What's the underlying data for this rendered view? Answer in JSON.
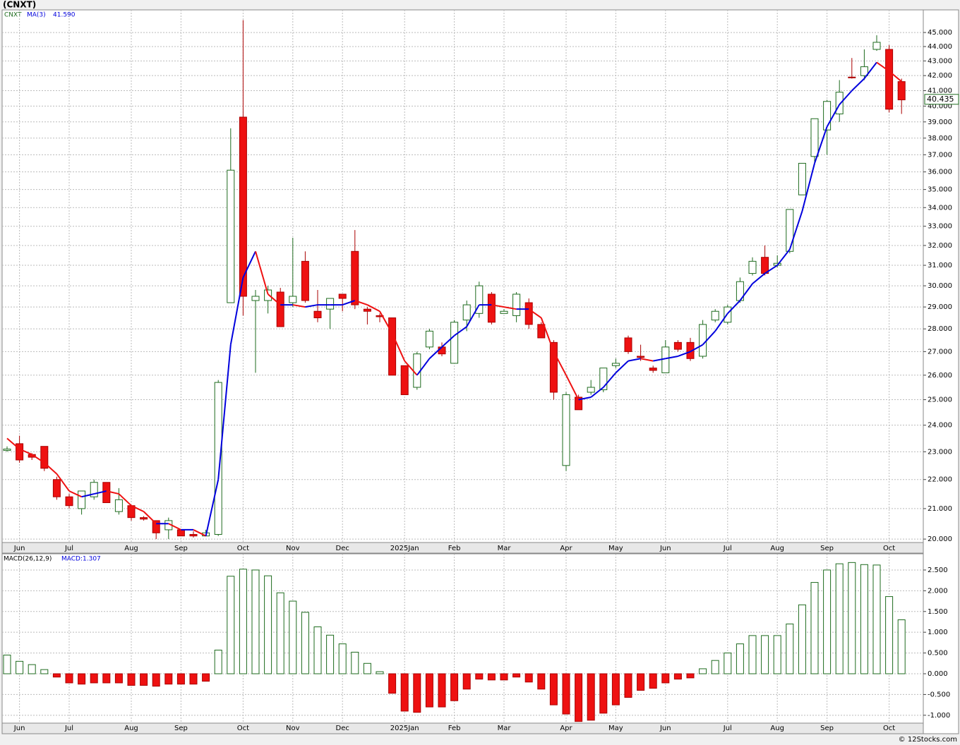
{
  "chart_data": [
    {
      "type": "candlestick",
      "title": "(CNXT)",
      "ticker": "CNXT",
      "log_scale": true,
      "grid": true,
      "up_color": "#ffffff",
      "up_stroke": "#1e6b1e",
      "down_color": "#ee1111",
      "down_stroke": "#aa0000",
      "categories": [
        null,
        "Jun",
        null,
        null,
        null,
        "Jul",
        null,
        null,
        null,
        null,
        "Aug",
        null,
        null,
        null,
        "Sep",
        null,
        null,
        null,
        null,
        "Oct",
        null,
        null,
        null,
        "Nov",
        null,
        null,
        null,
        "Dec",
        null,
        null,
        null,
        null,
        "2025Jan",
        null,
        null,
        null,
        "Feb",
        null,
        null,
        null,
        "Mar",
        null,
        null,
        null,
        null,
        "Apr",
        null,
        null,
        null,
        "May",
        null,
        null,
        null,
        "Jun",
        null,
        null,
        null,
        null,
        "Jul",
        null,
        null,
        null,
        "Aug",
        null,
        null,
        null,
        "Sep",
        null,
        null,
        null,
        null,
        "Oct",
        null
      ],
      "open": [
        23.05,
        23.3,
        22.9,
        23.2,
        22.0,
        21.4,
        21.0,
        21.4,
        21.9,
        20.9,
        21.1,
        20.7,
        20.6,
        20.3,
        20.3,
        20.15,
        20.1,
        20.15,
        29.2,
        39.3,
        29.3,
        29.3,
        29.7,
        29.2,
        31.2,
        28.8,
        28.9,
        29.6,
        31.7,
        28.9,
        28.6,
        28.5,
        26.4,
        25.5,
        27.2,
        27.2,
        26.5,
        28.4,
        28.7,
        29.6,
        28.7,
        28.6,
        29.2,
        28.2,
        27.4,
        22.5,
        25.1,
        25.3,
        25.4,
        26.4,
        27.6,
        26.8,
        26.3,
        26.1,
        27.4,
        27.4,
        26.8,
        28.4,
        28.3,
        29.3,
        30.6,
        31.4,
        31.0,
        31.7,
        34.7,
        36.9,
        38.5,
        39.5,
        41.9,
        42.0,
        43.8,
        43.8,
        41.6
      ],
      "high": [
        23.2,
        23.6,
        22.95,
        23.2,
        22.1,
        21.5,
        21.6,
        22.0,
        21.9,
        21.7,
        21.1,
        20.75,
        20.6,
        20.7,
        20.3,
        20.25,
        20.3,
        25.8,
        38.6,
        45.9,
        29.8,
        30.0,
        29.9,
        32.4,
        31.7,
        29.8,
        29.4,
        29.6,
        32.8,
        29.0,
        28.7,
        28.5,
        26.4,
        27.0,
        28.0,
        27.4,
        28.4,
        29.3,
        30.2,
        29.7,
        28.9,
        29.7,
        29.4,
        28.3,
        27.5,
        25.3,
        25.2,
        25.8,
        26.3,
        26.7,
        27.7,
        27.3,
        26.4,
        27.5,
        27.5,
        27.6,
        28.4,
        28.9,
        29.1,
        30.4,
        31.4,
        32.0,
        31.5,
        33.9,
        36.5,
        39.2,
        40.4,
        41.7,
        43.2,
        43.8,
        44.8,
        44.1,
        41.8
      ],
      "low": [
        23.0,
        22.6,
        22.7,
        22.3,
        21.3,
        21.0,
        20.8,
        21.3,
        21.2,
        20.8,
        20.6,
        20.6,
        20.0,
        20.0,
        20.1,
        20.05,
        20.1,
        20.1,
        29.2,
        28.6,
        26.1,
        28.7,
        28.1,
        29.0,
        29.2,
        28.3,
        28.0,
        28.8,
        28.9,
        28.2,
        28.3,
        26.0,
        25.2,
        25.4,
        27.1,
        26.8,
        26.5,
        27.9,
        28.5,
        28.2,
        28.7,
        28.3,
        28.0,
        27.6,
        25.0,
        22.3,
        24.6,
        25.2,
        25.3,
        26.3,
        26.9,
        26.6,
        26.1,
        26.1,
        27.0,
        26.6,
        26.7,
        28.3,
        28.2,
        29.2,
        30.5,
        30.5,
        30.9,
        31.6,
        34.7,
        36.5,
        37.0,
        39.0,
        41.8,
        41.7,
        43.7,
        39.6,
        39.5
      ],
      "close": [
        23.1,
        22.7,
        22.8,
        22.4,
        21.4,
        21.1,
        21.6,
        21.9,
        21.2,
        21.3,
        20.7,
        20.65,
        20.2,
        20.6,
        20.1,
        20.1,
        20.2,
        25.7,
        36.1,
        29.5,
        29.5,
        29.8,
        28.1,
        29.5,
        29.3,
        28.5,
        29.4,
        29.4,
        29.1,
        28.8,
        28.55,
        26.0,
        25.2,
        26.9,
        27.9,
        26.9,
        28.3,
        29.1,
        30.0,
        28.3,
        28.8,
        29.6,
        28.2,
        27.6,
        25.3,
        25.2,
        24.6,
        25.5,
        26.3,
        26.5,
        27.0,
        26.75,
        26.2,
        27.2,
        27.1,
        26.7,
        28.2,
        28.8,
        29.0,
        30.2,
        31.2,
        30.6,
        31.1,
        33.9,
        36.5,
        39.2,
        40.3,
        40.9,
        41.85,
        42.6,
        44.3,
        39.8,
        40.4
      ],
      "ma": {
        "name": "MA(3)",
        "last": {
          "value": 41.59,
          "label": "41.590"
        },
        "up_color": "#0000dd",
        "down_color": "#ee1111",
        "values": [
          23.5,
          23.1,
          22.9,
          22.6,
          22.2,
          21.6,
          21.4,
          21.5,
          21.6,
          21.5,
          21.1,
          20.9,
          20.5,
          20.5,
          20.3,
          20.3,
          20.1,
          22.0,
          27.3,
          30.4,
          31.7,
          29.6,
          29.1,
          29.1,
          29.0,
          29.1,
          29.1,
          29.1,
          29.3,
          29.1,
          28.8,
          27.8,
          26.6,
          26.0,
          26.7,
          27.2,
          27.7,
          28.1,
          29.1,
          29.1,
          29.0,
          28.9,
          28.9,
          28.5,
          27.0,
          26.0,
          25.0,
          25.1,
          25.5,
          26.1,
          26.6,
          26.7,
          26.6,
          26.7,
          26.8,
          27.0,
          27.3,
          27.9,
          28.7,
          29.3,
          30.1,
          30.6,
          31.0,
          31.8,
          33.8,
          36.5,
          38.7,
          40.1,
          41.0,
          41.8,
          42.9,
          42.3,
          41.6
        ]
      },
      "last_price": 40.435,
      "ylim": [
        19.89,
        46.66
      ],
      "yticks": [
        {
          "value": 20,
          "label": "20.000"
        },
        {
          "value": 21,
          "label": "21.000"
        },
        {
          "value": 22,
          "label": "22.000"
        },
        {
          "value": 23,
          "label": "23.000"
        },
        {
          "value": 24,
          "label": "24.000"
        },
        {
          "value": 25,
          "label": "25.000"
        },
        {
          "value": 26,
          "label": "26.000"
        },
        {
          "value": 27,
          "label": "27.000"
        },
        {
          "value": 28,
          "label": "28.000"
        },
        {
          "value": 29,
          "label": "29.000"
        },
        {
          "value": 30,
          "label": "30.000"
        },
        {
          "value": 31,
          "label": "31.000"
        },
        {
          "value": 32,
          "label": "32.000"
        },
        {
          "value": 33,
          "label": "33.000"
        },
        {
          "value": 34,
          "label": "34.000"
        },
        {
          "value": 35,
          "label": "35.000"
        },
        {
          "value": 36,
          "label": "36.000"
        },
        {
          "value": 37,
          "label": "37.000"
        },
        {
          "value": 38,
          "label": "38.000"
        },
        {
          "value": 39,
          "label": "39.000"
        },
        {
          "value": 40,
          "label": "40.000"
        },
        {
          "value": 41,
          "label": "41.000"
        },
        {
          "value": 42,
          "label": "42.000"
        },
        {
          "value": 43,
          "label": "43.000"
        },
        {
          "value": 44,
          "label": "44.000"
        },
        {
          "value": 45,
          "label": "45.000"
        }
      ]
    },
    {
      "type": "bar",
      "title": "MACD(26,12,9)",
      "legend": "MACD:1.307",
      "grid": true,
      "pos_color": "#ffffff",
      "pos_stroke": "#1e6b1e",
      "neg_color": "#ee1111",
      "neg_stroke": "#aa0000",
      "categories": [
        null,
        "Jun",
        null,
        null,
        null,
        "Jul",
        null,
        null,
        null,
        null,
        "Aug",
        null,
        null,
        null,
        "Sep",
        null,
        null,
        null,
        null,
        "Oct",
        null,
        null,
        null,
        "Nov",
        null,
        null,
        null,
        "Dec",
        null,
        null,
        null,
        null,
        "2025Jan",
        null,
        null,
        null,
        "Feb",
        null,
        null,
        null,
        "Mar",
        null,
        null,
        null,
        null,
        "Apr",
        null,
        null,
        null,
        "May",
        null,
        null,
        null,
        "Jun",
        null,
        null,
        null,
        null,
        "Jul",
        null,
        null,
        null,
        "Aug",
        null,
        null,
        null,
        "Sep",
        null,
        null,
        null,
        null,
        "Oct",
        null
      ],
      "values": [
        0.45,
        0.3,
        0.22,
        0.1,
        -0.08,
        -0.22,
        -0.25,
        -0.22,
        -0.22,
        -0.22,
        -0.28,
        -0.28,
        -0.3,
        -0.25,
        -0.25,
        -0.25,
        -0.18,
        0.57,
        2.35,
        2.52,
        2.5,
        2.36,
        1.95,
        1.75,
        1.48,
        1.13,
        0.93,
        0.72,
        0.52,
        0.25,
        0.05,
        -0.47,
        -0.9,
        -0.93,
        -0.8,
        -0.8,
        -0.65,
        -0.37,
        -0.13,
        -0.15,
        -0.15,
        -0.08,
        -0.2,
        -0.37,
        -0.75,
        -0.97,
        -1.15,
        -1.12,
        -0.95,
        -0.75,
        -0.57,
        -0.4,
        -0.35,
        -0.22,
        -0.13,
        -0.1,
        0.12,
        0.32,
        0.5,
        0.72,
        0.92,
        0.92,
        0.92,
        1.2,
        1.66,
        2.2,
        2.5,
        2.65,
        2.68,
        2.63,
        2.62,
        1.86,
        1.3
      ],
      "ylim": [
        -1.19,
        2.89
      ],
      "yticks": [
        {
          "value": -1,
          "label": "-1.000"
        },
        {
          "value": -0.5,
          "label": "-0.500"
        },
        {
          "value": 0,
          "label": "0.000"
        },
        {
          "value": 0.5,
          "label": "0.500"
        },
        {
          "value": 1,
          "label": "1.000"
        },
        {
          "value": 1.5,
          "label": "1.500"
        },
        {
          "value": 2,
          "label": "2.000"
        },
        {
          "value": 2.5,
          "label": "2.500"
        }
      ]
    }
  ],
  "footer": "© 12Stocks.com"
}
